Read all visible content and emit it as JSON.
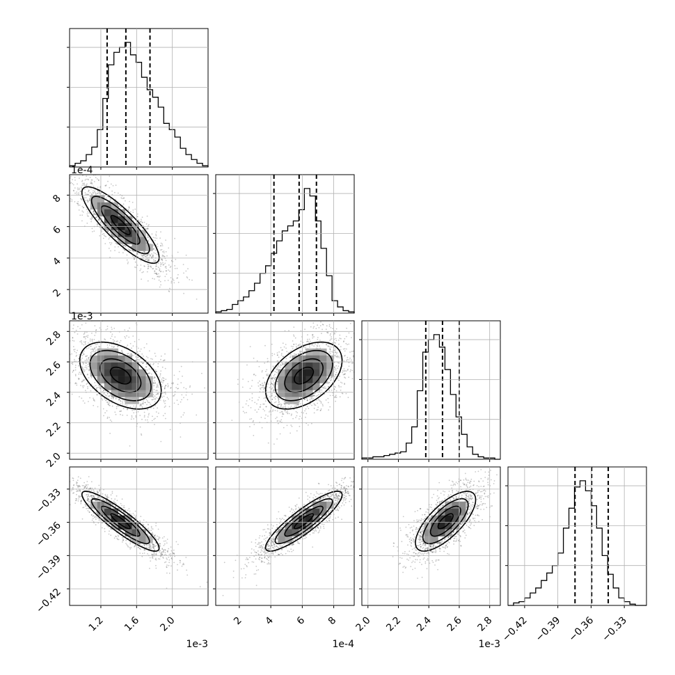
{
  "chart_data": {
    "type": "scatter",
    "title": "",
    "plot_kind": "corner plot: 1D marginal histograms on the diagonal, 2D scatter + contour density panels below",
    "grid": true,
    "parameters": [
      {
        "axis_range": [
          0.00085,
          0.0024
        ],
        "offset": "1e-3",
        "ticks": [
          0.0012,
          0.0016,
          0.002
        ],
        "tick_labels": [
          "1.2",
          "1.6",
          "2.0"
        ],
        "quantiles": [
          0.00127,
          0.00148,
          0.00175
        ],
        "peak": 0.00142,
        "hist": [
          0.01,
          0.03,
          0.05,
          0.1,
          0.16,
          0.3,
          0.55,
          0.82,
          0.92,
          0.96,
          1.0,
          0.9,
          0.84,
          0.72,
          0.62,
          0.56,
          0.48,
          0.35,
          0.3,
          0.24,
          0.15,
          0.1,
          0.06,
          0.03,
          0.01
        ]
      },
      {
        "axis_range": [
          5e-05,
          0.00093
        ],
        "offset": "1e-4",
        "ticks": [
          0.0002,
          0.0004,
          0.0006,
          0.0008
        ],
        "tick_labels": [
          "2",
          "4",
          "6",
          "8"
        ],
        "quantiles": [
          0.00042,
          0.00058,
          0.00069
        ],
        "peak": 0.00061,
        "hist": [
          0.01,
          0.02,
          0.03,
          0.07,
          0.1,
          0.13,
          0.18,
          0.24,
          0.32,
          0.38,
          0.48,
          0.58,
          0.66,
          0.7,
          0.74,
          0.83,
          1.0,
          0.94,
          0.74,
          0.52,
          0.3,
          0.1,
          0.05,
          0.02,
          0.01
        ]
      },
      {
        "axis_range": [
          0.00196,
          0.00287
        ],
        "offset": "1e-3",
        "ticks": [
          0.002,
          0.0022,
          0.0024,
          0.0026,
          0.0028
        ],
        "tick_labels": [
          "2.0",
          "2.2",
          "2.4",
          "2.6",
          "2.8"
        ],
        "quantiles": [
          0.00238,
          0.00249,
          0.0026
        ],
        "peak": 0.00251,
        "hist": [
          0.01,
          0.01,
          0.02,
          0.02,
          0.03,
          0.04,
          0.05,
          0.06,
          0.13,
          0.26,
          0.55,
          0.86,
          0.96,
          1.0,
          0.9,
          0.72,
          0.52,
          0.34,
          0.2,
          0.1,
          0.04,
          0.02,
          0.01,
          0.01,
          0.0
        ]
      },
      {
        "axis_range": [
          -0.435,
          -0.31
        ],
        "offset": "",
        "ticks": [
          -0.42,
          -0.39,
          -0.36,
          -0.33
        ],
        "tick_labels": [
          "−0.42",
          "−0.39",
          "−0.36",
          "−0.33"
        ],
        "quantiles": [
          -0.3745,
          -0.3595,
          -0.3445
        ],
        "peak": -0.359,
        "hist": [
          0.0,
          0.02,
          0.03,
          0.06,
          0.1,
          0.14,
          0.2,
          0.26,
          0.32,
          0.42,
          0.62,
          0.78,
          0.95,
          1.0,
          0.92,
          0.8,
          0.62,
          0.4,
          0.25,
          0.14,
          0.06,
          0.03,
          0.01,
          0.0,
          0.0
        ]
      }
    ],
    "pairs": [
      {
        "row": 1,
        "col": 0,
        "correlation": -0.85,
        "sigma": [
          0.9,
          0.9
        ]
      },
      {
        "row": 2,
        "col": 0,
        "correlation": -0.45,
        "sigma": [
          0.95,
          1.0
        ]
      },
      {
        "row": 2,
        "col": 1,
        "correlation": 0.45,
        "sigma": [
          0.9,
          1.0
        ]
      },
      {
        "row": 3,
        "col": 0,
        "correlation": -0.9,
        "sigma": [
          0.9,
          0.9
        ]
      },
      {
        "row": 3,
        "col": 1,
        "correlation": 0.88,
        "sigma": [
          0.9,
          0.9
        ]
      },
      {
        "row": 3,
        "col": 2,
        "correlation": 0.72,
        "sigma": [
          0.9,
          0.9
        ]
      }
    ],
    "contour_levels": [
      0.5,
      1.0,
      1.5,
      2.0
    ]
  }
}
